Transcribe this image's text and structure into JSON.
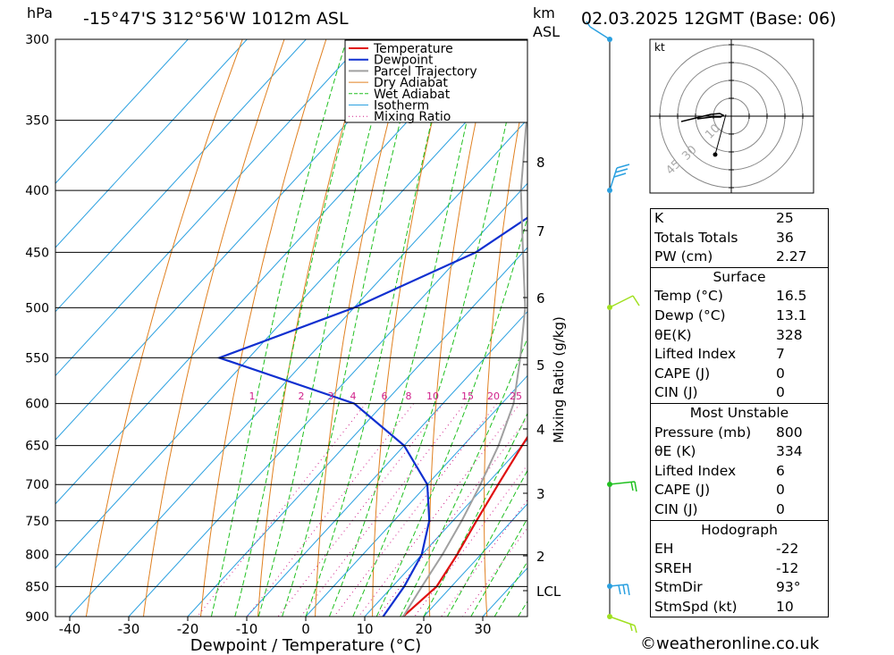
{
  "header": {
    "hpa_label": "hPa",
    "location": "-15°47'S 312°56'W 1012m ASL",
    "km_label": "km",
    "asl_label": "ASL",
    "datetime": "02.03.2025 12GMT (Base: 06)"
  },
  "chart_data": {
    "type": "line",
    "title": "-15°47'S 312°56'W 1012m ASL",
    "xlabel": "Dewpoint / Temperature (°C)",
    "ylabel": "hPa",
    "y2label": "Mixing Ratio (g/kg)",
    "x_ticks": [
      -40,
      -30,
      -20,
      -10,
      0,
      10,
      20,
      30
    ],
    "pressure_ticks": [
      300,
      350,
      400,
      450,
      500,
      550,
      600,
      650,
      700,
      750,
      800,
      850,
      900
    ],
    "km_ticks": [
      "8",
      "7",
      "6",
      "5",
      "4",
      "3",
      "2",
      "LCL"
    ],
    "mixing_ratio_labels": [
      "1",
      "2",
      "3",
      "4",
      "6",
      "8",
      "10",
      "15",
      "20",
      "25"
    ],
    "legend": [
      "Temperature",
      "Dewpoint",
      "Parcel Trajectory",
      "Dry Adiabat",
      "Wet Adiabat",
      "Isotherm",
      "Mixing Ratio"
    ],
    "series": [
      {
        "name": "Temperature",
        "color": "#e01010",
        "points": [
          [
            300,
            -35
          ],
          [
            350,
            -23
          ],
          [
            400,
            -13
          ],
          [
            450,
            -5
          ],
          [
            500,
            1
          ],
          [
            550,
            5
          ],
          [
            600,
            8
          ],
          [
            650,
            10
          ],
          [
            700,
            12
          ],
          [
            750,
            14
          ],
          [
            800,
            16
          ],
          [
            850,
            17.5
          ],
          [
            900,
            16.5
          ]
        ]
      },
      {
        "name": "Dewpoint",
        "color": "#1030d0",
        "points": [
          [
            300,
            -40
          ],
          [
            350,
            -30
          ],
          [
            400,
            -22
          ],
          [
            450,
            -28
          ],
          [
            500,
            -40
          ],
          [
            550,
            -55
          ],
          [
            600,
            -25
          ],
          [
            650,
            -10
          ],
          [
            700,
            0
          ],
          [
            750,
            6
          ],
          [
            800,
            10
          ],
          [
            850,
            12
          ],
          [
            900,
            13.1
          ]
        ]
      },
      {
        "name": "Parcel Trajectory",
        "color": "#a0a0a0",
        "points": [
          [
            310,
            -48
          ],
          [
            350,
            -40
          ],
          [
            400,
            -30
          ],
          [
            450,
            -20
          ],
          [
            500,
            -11
          ],
          [
            550,
            -4
          ],
          [
            600,
            2
          ],
          [
            650,
            6
          ],
          [
            700,
            9
          ],
          [
            750,
            11.5
          ],
          [
            800,
            13.5
          ],
          [
            850,
            15
          ],
          [
            900,
            16.5
          ]
        ]
      }
    ]
  },
  "hodograph": {
    "unit": "kt",
    "ring_labels": [
      "10",
      "30",
      "45"
    ]
  },
  "stats": {
    "basic": [
      {
        "label": "K",
        "value": "25"
      },
      {
        "label": "Totals Totals",
        "value": "36"
      },
      {
        "label": "PW (cm)",
        "value": "2.27"
      }
    ],
    "surface": {
      "title": "Surface",
      "rows": [
        {
          "label": "Temp (°C)",
          "value": "16.5"
        },
        {
          "label": "Dewp (°C)",
          "value": "13.1"
        },
        {
          "label": "θE(K)",
          "value": "328"
        },
        {
          "label": "Lifted Index",
          "value": "7"
        },
        {
          "label": "CAPE (J)",
          "value": "0"
        },
        {
          "label": "CIN (J)",
          "value": "0"
        }
      ]
    },
    "unstable": {
      "title": "Most Unstable",
      "rows": [
        {
          "label": "Pressure (mb)",
          "value": "800"
        },
        {
          "label": "θE (K)",
          "value": "334"
        },
        {
          "label": "Lifted Index",
          "value": "6"
        },
        {
          "label": "CAPE (J)",
          "value": "0"
        },
        {
          "label": "CIN (J)",
          "value": "0"
        }
      ]
    },
    "hodo": {
      "title": "Hodograph",
      "rows": [
        {
          "label": "EH",
          "value": "-22"
        },
        {
          "label": "SREH",
          "value": "-12"
        },
        {
          "label": "StmDir",
          "value": "93°"
        },
        {
          "label": "StmSpd (kt)",
          "value": "10"
        }
      ]
    }
  },
  "footer": {
    "copyright": "©weatheronline.co.uk"
  }
}
